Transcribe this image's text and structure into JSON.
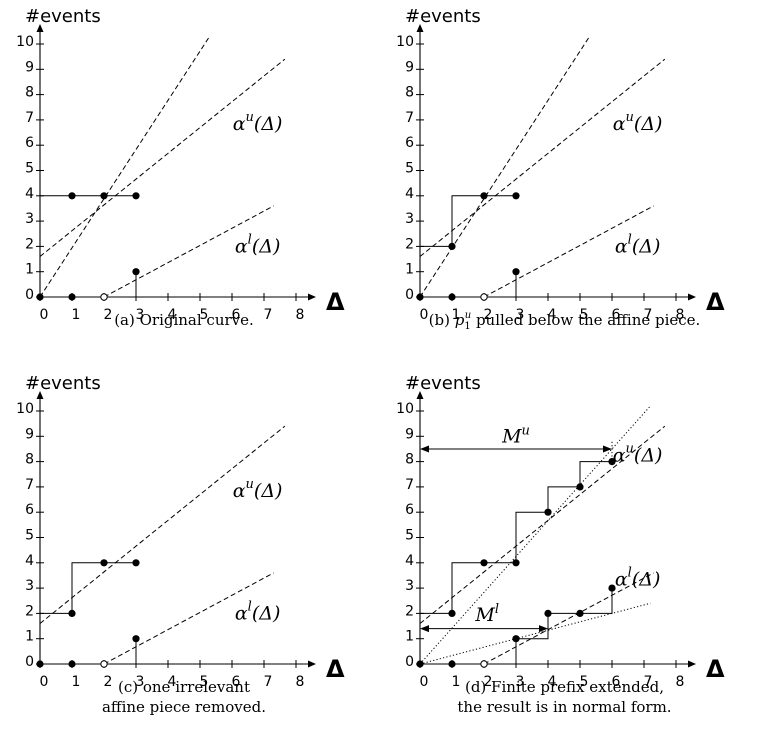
{
  "chart_data": [
    {
      "id": "a",
      "type": "line",
      "caption": "(a) Original curve.",
      "ylabel": "#events",
      "xlabel": "Δ",
      "xlim": [
        0,
        8
      ],
      "ylim": [
        0,
        10
      ],
      "xticks": [
        0,
        1,
        2,
        3,
        4,
        5,
        6,
        7,
        8
      ],
      "yticks": [
        0,
        1,
        2,
        3,
        4,
        5,
        6,
        7,
        8,
        9,
        10
      ],
      "curve_labels": [
        {
          "base": "α",
          "sup": "u",
          "rest": "(Δ)",
          "at": [
            6.8,
            6.6
          ]
        },
        {
          "base": "α",
          "sup": "l",
          "rest": "(Δ)",
          "at": [
            6.8,
            1.75
          ]
        }
      ],
      "dashed_lines": [
        {
          "from": [
            0,
            0
          ],
          "to": [
            5.3,
            10.3
          ]
        },
        {
          "from": [
            0,
            1.6
          ],
          "to": [
            7.65,
            9.4
          ]
        },
        {
          "from": [
            2,
            0
          ],
          "to": [
            7.3,
            3.6
          ]
        }
      ],
      "dotted_lines": [],
      "steps": [
        {
          "points": [
            [
              0,
              0
            ],
            [
              0,
              4
            ],
            [
              3,
              4
            ]
          ]
        },
        {
          "points": [
            [
              0,
              0
            ],
            [
              3,
              0
            ],
            [
              3,
              1
            ]
          ]
        }
      ],
      "filled_points": [
        [
          0,
          0
        ],
        [
          1,
          4
        ],
        [
          2,
          4
        ],
        [
          3,
          4
        ],
        [
          1,
          0
        ],
        [
          3,
          1
        ]
      ],
      "hollow_points": [
        [
          2,
          0
        ]
      ],
      "annotations": []
    },
    {
      "id": "b",
      "type": "line",
      "caption": "(b) p₁ᵘ pulled below the affine piece.",
      "caption_parts": {
        "before": "(b) ",
        "p": "p",
        "sub": "1",
        "sup": "u",
        "after": " pulled below the affine piece."
      },
      "ylabel": "#events",
      "xlabel": "Δ",
      "xlim": [
        0,
        8
      ],
      "ylim": [
        0,
        10
      ],
      "xticks": [
        0,
        1,
        2,
        3,
        4,
        5,
        6,
        7,
        8
      ],
      "yticks": [
        0,
        1,
        2,
        3,
        4,
        5,
        6,
        7,
        8,
        9,
        10
      ],
      "curve_labels": [
        {
          "base": "α",
          "sup": "u",
          "rest": "(Δ)",
          "at": [
            6.8,
            6.6
          ]
        },
        {
          "base": "α",
          "sup": "l",
          "rest": "(Δ)",
          "at": [
            6.8,
            1.75
          ]
        }
      ],
      "dashed_lines": [
        {
          "from": [
            0,
            0
          ],
          "to": [
            5.3,
            10.3
          ]
        },
        {
          "from": [
            0,
            1.6
          ],
          "to": [
            7.65,
            9.4
          ]
        },
        {
          "from": [
            2,
            0
          ],
          "to": [
            7.3,
            3.6
          ]
        }
      ],
      "dotted_lines": [],
      "steps": [
        {
          "points": [
            [
              0,
              0
            ],
            [
              0,
              2
            ],
            [
              1,
              2
            ],
            [
              1,
              4
            ],
            [
              3,
              4
            ]
          ]
        },
        {
          "points": [
            [
              0,
              0
            ],
            [
              3,
              0
            ],
            [
              3,
              1
            ]
          ]
        }
      ],
      "filled_points": [
        [
          0,
          0
        ],
        [
          1,
          2
        ],
        [
          2,
          4
        ],
        [
          3,
          4
        ],
        [
          1,
          0
        ],
        [
          3,
          1
        ]
      ],
      "hollow_points": [
        [
          2,
          0
        ]
      ],
      "annotations": []
    },
    {
      "id": "c",
      "type": "line",
      "caption": [
        "(c) one irrelevant",
        "affine piece removed."
      ],
      "ylabel": "#events",
      "xlabel": "Δ",
      "xlim": [
        0,
        8
      ],
      "ylim": [
        0,
        10
      ],
      "xticks": [
        0,
        1,
        2,
        3,
        4,
        5,
        6,
        7,
        8
      ],
      "yticks": [
        0,
        1,
        2,
        3,
        4,
        5,
        6,
        7,
        8,
        9,
        10
      ],
      "curve_labels": [
        {
          "base": "α",
          "sup": "u",
          "rest": "(Δ)",
          "at": [
            6.8,
            6.6
          ]
        },
        {
          "base": "α",
          "sup": "l",
          "rest": "(Δ)",
          "at": [
            6.8,
            1.75
          ]
        }
      ],
      "dashed_lines": [
        {
          "from": [
            0,
            1.6
          ],
          "to": [
            7.65,
            9.4
          ]
        },
        {
          "from": [
            2,
            0
          ],
          "to": [
            7.3,
            3.6
          ]
        }
      ],
      "dotted_lines": [],
      "steps": [
        {
          "points": [
            [
              0,
              0
            ],
            [
              0,
              2
            ],
            [
              1,
              2
            ],
            [
              1,
              4
            ],
            [
              3,
              4
            ]
          ]
        },
        {
          "points": [
            [
              0,
              0
            ],
            [
              3,
              0
            ],
            [
              3,
              1
            ]
          ]
        }
      ],
      "filled_points": [
        [
          0,
          0
        ],
        [
          1,
          2
        ],
        [
          2,
          4
        ],
        [
          3,
          4
        ],
        [
          1,
          0
        ],
        [
          3,
          1
        ]
      ],
      "hollow_points": [
        [
          2,
          0
        ]
      ],
      "annotations": []
    },
    {
      "id": "d",
      "type": "line",
      "caption": [
        "(d) Finite prefix extended,",
        "the result is in normal form."
      ],
      "ylabel": "#events",
      "xlabel": "Δ",
      "xlim": [
        0,
        8
      ],
      "ylim": [
        0,
        10
      ],
      "xticks": [
        0,
        1,
        2,
        3,
        4,
        5,
        6,
        7,
        8
      ],
      "yticks": [
        0,
        1,
        2,
        3,
        4,
        5,
        6,
        7,
        8,
        9,
        10
      ],
      "curve_labels": [
        {
          "base": "α",
          "sup": "u",
          "rest": "(Δ)",
          "at": [
            6.8,
            8.0
          ]
        },
        {
          "base": "α",
          "sup": "l",
          "rest": "(Δ)",
          "at": [
            6.8,
            3.1
          ]
        }
      ],
      "dashed_lines": [
        {
          "from": [
            0,
            1.6
          ],
          "to": [
            7.65,
            9.4
          ]
        },
        {
          "from": [
            2,
            0
          ],
          "to": [
            7.3,
            3.6
          ]
        }
      ],
      "dotted_lines": [
        {
          "from": [
            0,
            0
          ],
          "to": [
            7.2,
            10.2
          ]
        },
        {
          "from": [
            0,
            0
          ],
          "to": [
            7.2,
            2.4
          ]
        }
      ],
      "steps": [
        {
          "points": [
            [
              0,
              0
            ],
            [
              0,
              2
            ],
            [
              1,
              2
            ],
            [
              1,
              4
            ],
            [
              3,
              4
            ],
            [
              3,
              6
            ],
            [
              4,
              6
            ],
            [
              4,
              7
            ],
            [
              5,
              7
            ],
            [
              5,
              8
            ],
            [
              6,
              8
            ]
          ]
        },
        {
          "points": [
            [
              0,
              0
            ],
            [
              3,
              0
            ],
            [
              3,
              1
            ],
            [
              4,
              1
            ],
            [
              4,
              2
            ],
            [
              5,
              2
            ],
            [
              6,
              2
            ],
            [
              6,
              3
            ]
          ]
        }
      ],
      "filled_points": [
        [
          0,
          0
        ],
        [
          1,
          2
        ],
        [
          2,
          4
        ],
        [
          3,
          4
        ],
        [
          4,
          6
        ],
        [
          5,
          7
        ],
        [
          6,
          8
        ],
        [
          1,
          0
        ],
        [
          3,
          1
        ],
        [
          4,
          2
        ],
        [
          5,
          2
        ],
        [
          6,
          3
        ]
      ],
      "hollow_points": [
        [
          2,
          0
        ]
      ],
      "annotations": [
        {
          "label": "M",
          "sup": "u",
          "from": [
            0,
            8.5
          ],
          "to": [
            6,
            8.5
          ],
          "label_at": [
            3.0,
            8.75
          ],
          "end_tick": [
            6,
            8.2,
            8.8
          ]
        },
        {
          "label": "M",
          "sup": "l",
          "from": [
            0,
            1.4
          ],
          "to": [
            4,
            1.4
          ],
          "label_at": [
            2.1,
            1.7
          ],
          "end_tick": [
            4,
            1.0,
            1.6
          ]
        }
      ]
    }
  ]
}
